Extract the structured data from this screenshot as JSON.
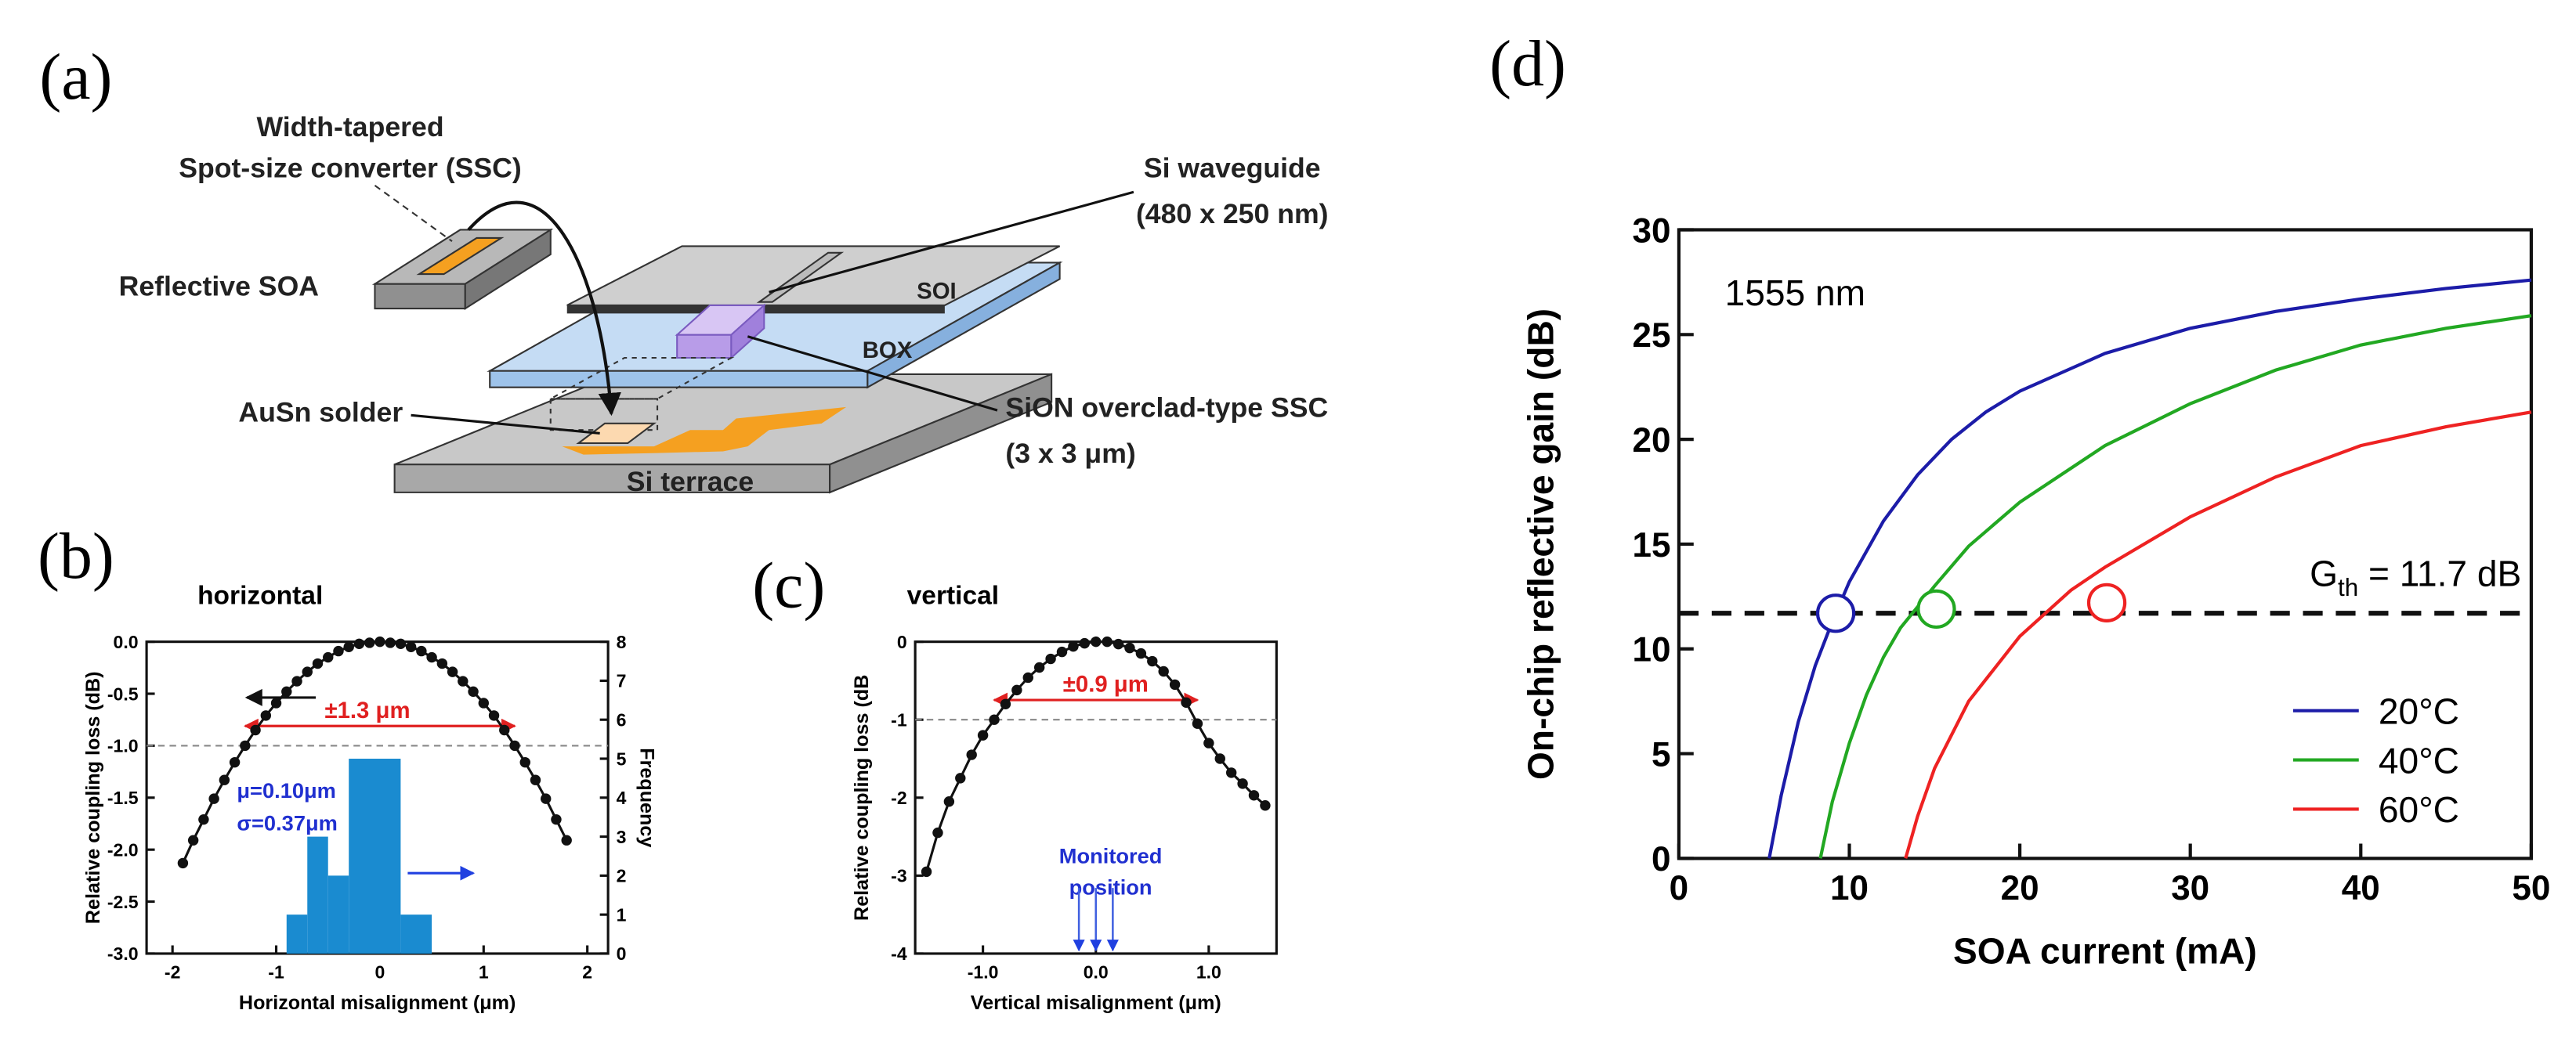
{
  "panel_labels": [
    "(a)",
    "(b)",
    "(c)",
    "(d)"
  ],
  "diagram": {
    "ssc_label": [
      "Width-tapered",
      "Spot-size converter (SSC)"
    ],
    "soa_label": "Reflective SOA",
    "waveguide_label": [
      "Si waveguide",
      "(480 x 250 nm)"
    ],
    "soi_label": "SOI",
    "box_label": "BOX",
    "solder_label": "AuSn solder",
    "sion_label": [
      "SiON overclad-type SSC",
      "(3 x 3 μm)"
    ],
    "terrace_label": "Si terrace"
  },
  "chart_data": [
    {
      "type": "line",
      "title": "horizontal",
      "xlabel": "Horizontal misalignment (μm)",
      "ylabel": "Relative coupling loss (dB)",
      "y2label": "Frequency",
      "xlim": [
        -2.25,
        2.2
      ],
      "xticks": [
        -2,
        -1,
        0,
        1,
        2
      ],
      "ylim": [
        -3,
        0
      ],
      "yticks": [
        {
          "value": -3,
          "label": "-3.0"
        },
        {
          "value": -2.5,
          "label": "-2.5"
        },
        {
          "value": -2,
          "label": "-2.0"
        },
        {
          "value": -1.5,
          "label": "-1.5"
        },
        {
          "value": -1,
          "label": "-1.0"
        },
        {
          "value": -0.5,
          "label": "-0.5"
        },
        {
          "value": 0,
          "label": "0.0"
        }
      ],
      "y2lim": [
        0,
        8
      ],
      "y2ticks": [
        0,
        1,
        2,
        3,
        4,
        5,
        6,
        7,
        8
      ],
      "color": "#111111",
      "x": [
        -1.9,
        -1.8,
        -1.7,
        -1.6,
        -1.5,
        -1.4,
        -1.3,
        -1.2,
        -1.1,
        -1.0,
        -0.9,
        -0.8,
        -0.7,
        -0.6,
        -0.5,
        -0.4,
        -0.3,
        -0.2,
        -0.1,
        0,
        0.1,
        0.2,
        0.3,
        0.4,
        0.5,
        0.6,
        0.7,
        0.8,
        0.9,
        1.0,
        1.1,
        1.2,
        1.3,
        1.4,
        1.5,
        1.6,
        1.7,
        1.8
      ],
      "values": [
        -2.13,
        -1.91,
        -1.71,
        -1.51,
        -1.33,
        -1.16,
        -1.0,
        -0.85,
        -0.71,
        -0.59,
        -0.48,
        -0.38,
        -0.29,
        -0.21,
        -0.15,
        -0.09,
        -0.05,
        -0.02,
        -0.01,
        0,
        -0.01,
        -0.02,
        -0.05,
        -0.09,
        -0.15,
        -0.21,
        -0.29,
        -0.38,
        -0.48,
        -0.59,
        -0.71,
        -0.85,
        -1.0,
        -1.16,
        -1.33,
        -1.51,
        -1.71,
        -1.91
      ],
      "histogram": {
        "axis": "y2",
        "color": "#1a8bd0",
        "bins": [
          -0.9,
          -0.7,
          -0.5,
          -0.3,
          0.2,
          0.5
        ],
        "counts": [
          1,
          3,
          2,
          5,
          1
        ]
      },
      "threshold": -1.0,
      "span": [
        -1.3,
        1.3
      ],
      "span_label": "±1.3 μm",
      "stats": [
        "μ=0.10μm",
        "σ=0.37μm"
      ]
    },
    {
      "type": "line",
      "title": "vertical",
      "xlabel": "Vertical misalignment (μm)",
      "ylabel": "Relative coupling loss (dB",
      "xlim": [
        -1.6,
        1.6
      ],
      "xticks": [
        {
          "value": -1,
          "label": "-1.0"
        },
        {
          "value": 0,
          "label": "0.0"
        },
        {
          "value": 1,
          "label": "1.0"
        }
      ],
      "ylim": [
        -4,
        0
      ],
      "yticks": [
        -4,
        -3,
        -2,
        -1,
        0
      ],
      "color": "#111111",
      "x": [
        -1.5,
        -1.4,
        -1.3,
        -1.2,
        -1.1,
        -1.0,
        -0.9,
        -0.8,
        -0.7,
        -0.6,
        -0.5,
        -0.4,
        -0.3,
        -0.2,
        -0.1,
        0,
        0.1,
        0.2,
        0.3,
        0.4,
        0.5,
        0.6,
        0.7,
        0.8,
        0.9,
        1.0,
        1.1,
        1.2,
        1.3,
        1.4,
        1.5
      ],
      "values": [
        -2.95,
        -2.45,
        -2.05,
        -1.75,
        -1.45,
        -1.2,
        -1.0,
        -0.8,
        -0.62,
        -0.46,
        -0.33,
        -0.22,
        -0.13,
        -0.06,
        -0.02,
        0,
        0,
        -0.03,
        -0.08,
        -0.15,
        -0.25,
        -0.38,
        -0.55,
        -0.78,
        -1.05,
        -1.3,
        -1.5,
        -1.68,
        -1.82,
        -1.97,
        -2.1
      ],
      "threshold": -1.0,
      "span": [
        -0.9,
        0.9
      ],
      "span_label": "±0.9 μm",
      "note": [
        "Monitored",
        "position"
      ],
      "monitor_x": [
        -0.15,
        0,
        0.15
      ]
    },
    {
      "type": "line",
      "xlabel": "SOA current (mA)",
      "ylabel": "On-chip reflective gain (dB)",
      "xlim": [
        0,
        50
      ],
      "xticks": [
        0,
        10,
        20,
        30,
        40,
        50
      ],
      "ylim": [
        0,
        30
      ],
      "yticks": [
        0,
        5,
        10,
        15,
        20,
        25,
        30
      ],
      "annotation": "1555 nm",
      "threshold": 11.7,
      "threshold_label": [
        "G",
        "th",
        " = 11.7 dB"
      ],
      "legend": "lower right",
      "series": [
        {
          "name": "20°C",
          "color": "#1c1ca8",
          "x": [
            5.3,
            6,
            7,
            8,
            9,
            10,
            12,
            14,
            16,
            18,
            20,
            25,
            30,
            35,
            40,
            45,
            50
          ],
          "values": [
            0,
            3,
            6.5,
            9.2,
            11.3,
            13.2,
            16.1,
            18.3,
            20,
            21.3,
            22.3,
            24.1,
            25.3,
            26.1,
            26.7,
            27.2,
            27.6
          ]
        },
        {
          "name": "40°C",
          "color": "#22a822",
          "x": [
            8.3,
            9,
            10,
            11,
            12,
            13,
            15,
            17,
            20,
            25,
            30,
            35,
            40,
            45,
            50
          ],
          "values": [
            0,
            2.7,
            5.5,
            7.8,
            9.6,
            11,
            13,
            14.9,
            17,
            19.7,
            21.7,
            23.3,
            24.5,
            25.3,
            25.9
          ]
        },
        {
          "name": "60°C",
          "color": "#ee2222",
          "x": [
            13.3,
            14,
            15,
            17,
            20,
            23,
            25,
            30,
            35,
            40,
            45,
            50
          ],
          "values": [
            0,
            2,
            4.3,
            7.5,
            10.6,
            12.8,
            13.9,
            16.3,
            18.2,
            19.7,
            20.6,
            21.3
          ]
        }
      ],
      "markers": [
        {
          "x": 9.2,
          "y": 11.7
        },
        {
          "x": 15.1,
          "y": 11.9
        },
        {
          "x": 25.1,
          "y": 12.2
        }
      ]
    }
  ]
}
